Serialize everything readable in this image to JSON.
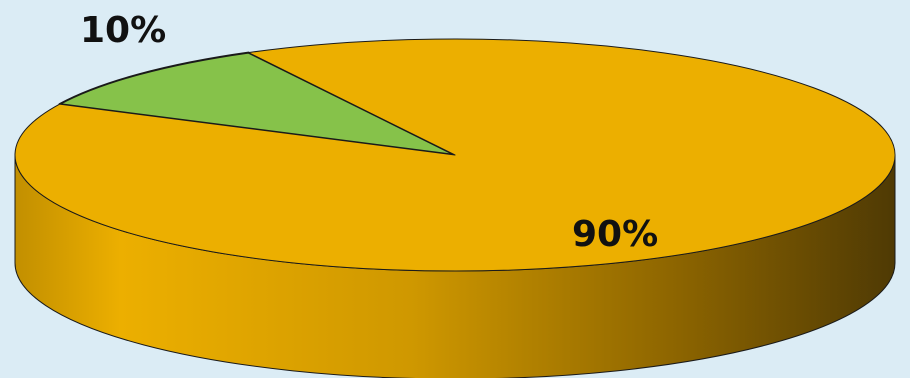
{
  "chart_data": {
    "type": "pie",
    "style": "3d",
    "slices": [
      {
        "label": "10%",
        "value": 10,
        "color": "#86c24a"
      },
      {
        "label": "90%",
        "value": 90,
        "color": "#ecaf00"
      }
    ]
  },
  "colors": {
    "background": "#dbecf5",
    "edge": "#1a1a1a"
  }
}
